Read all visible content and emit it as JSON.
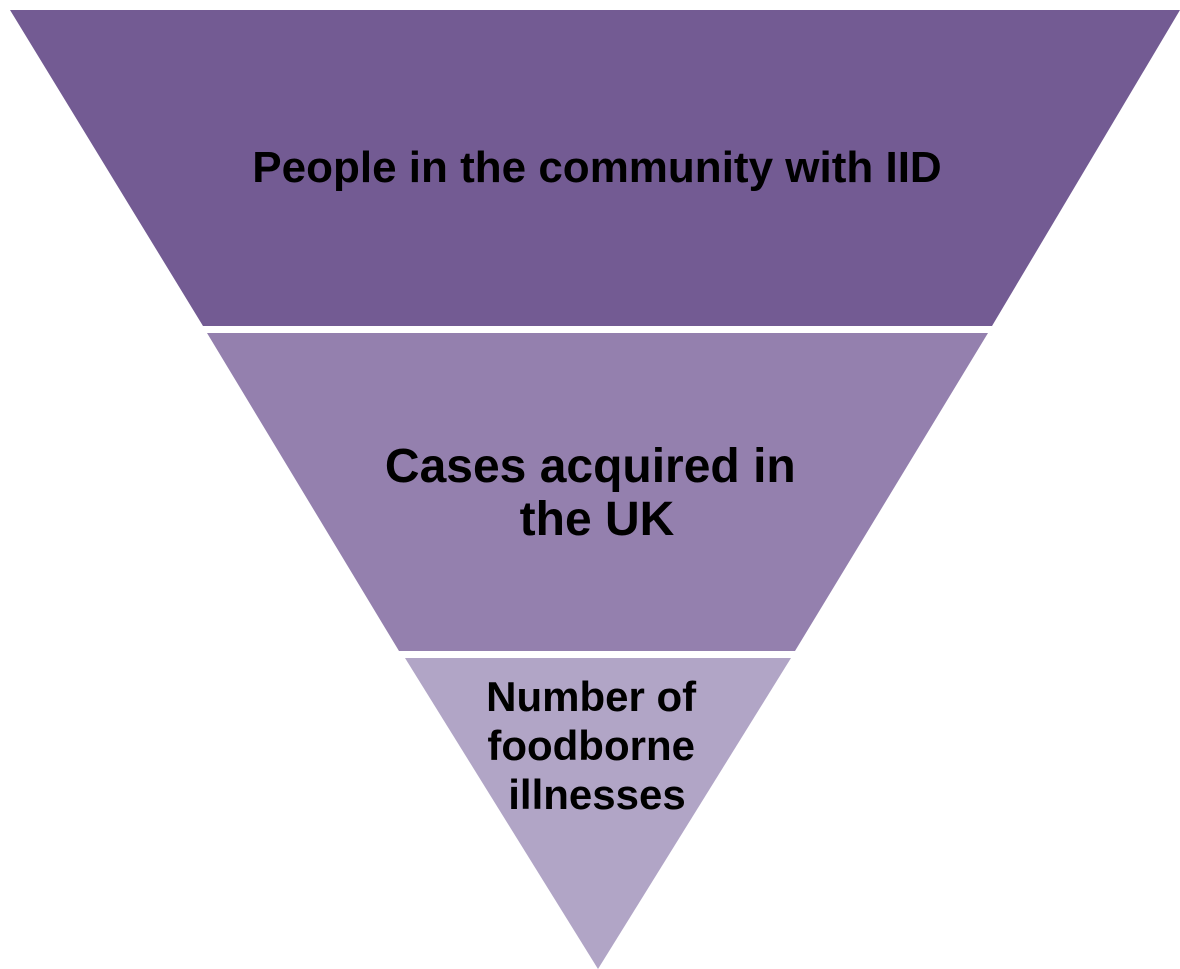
{
  "diagram": {
    "type": "inverted-funnel",
    "tiers": [
      {
        "lines": [
          "People in the community with IID"
        ],
        "color": "#735b93"
      },
      {
        "lines": [
          "Cases acquired in",
          "the UK"
        ],
        "color": "#9480ae"
      },
      {
        "lines": [
          "Number of",
          "foodborne",
          "illnesses"
        ],
        "color": "#b1a5c6"
      }
    ],
    "separator_color": "#ffffff"
  }
}
